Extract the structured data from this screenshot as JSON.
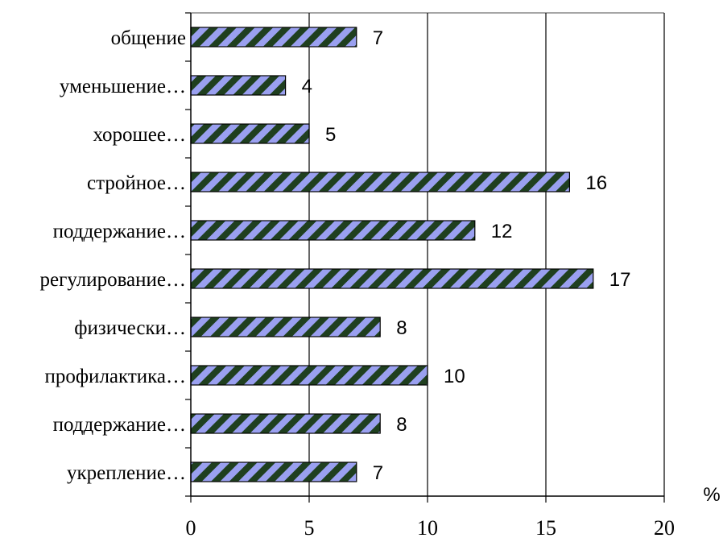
{
  "chart_data": {
    "type": "bar",
    "orientation": "horizontal",
    "categories": [
      "общение",
      "уменьшение…",
      "хорошее…",
      "стройное…",
      "поддержание…",
      "регулирование…",
      "физически…",
      "профилактика…",
      "поддержание…",
      "укрепление…"
    ],
    "values": [
      7,
      4,
      5,
      16,
      12,
      17,
      8,
      10,
      8,
      7
    ],
    "data_labels": [
      "7",
      "4",
      "5",
      "16",
      "12",
      "17",
      "8",
      "10",
      "8",
      "7"
    ],
    "x_ticks": [
      "0",
      "5",
      "10",
      "15",
      "20"
    ],
    "xlim": [
      0,
      20
    ],
    "x_unit": "%",
    "grid": "vertical",
    "bar_pattern": "diagonal stripes",
    "colors": {
      "bar_stripe_a": "#1f3f1f",
      "bar_stripe_b": "#9aa0f0",
      "grid": "#000000",
      "axis": "#000000"
    }
  }
}
